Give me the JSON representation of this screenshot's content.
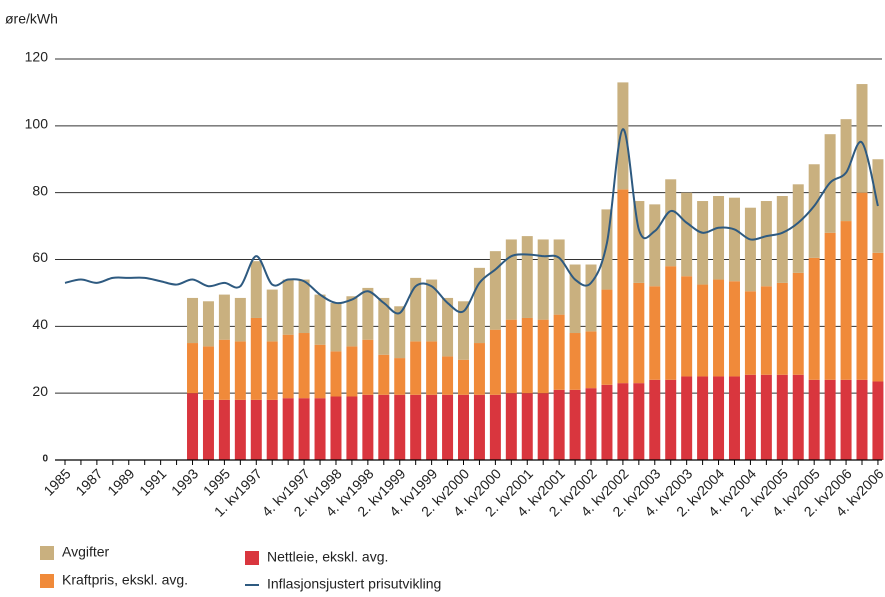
{
  "chart_data": {
    "type": "bar",
    "y_label": "øre/kWh",
    "categories": [
      "1985",
      null,
      "1987",
      null,
      "1989",
      null,
      "1991",
      null,
      "1993",
      null,
      "1995",
      null,
      "1. kv1997",
      null,
      null,
      "4. kv1997",
      null,
      "2. kv1998",
      null,
      "4. kv1998",
      null,
      "2. kv1999",
      null,
      "4. kv1999",
      null,
      "2. kv2000",
      null,
      "4. kv2000",
      null,
      "2. kv2001",
      null,
      "4. kv2001",
      null,
      "2. kv2002",
      null,
      "4. kv2002",
      null,
      "2. kv2003",
      null,
      "4. kv2003",
      null,
      "2. kv2004",
      null,
      "4. kv2004",
      null,
      "2. kv2005",
      null,
      "4. kv2005",
      null,
      "2. kv2006",
      null,
      "4. kv2006"
    ],
    "series": [
      {
        "name": "Nettleie, ekskl. avg.",
        "type": "bar",
        "color": "#d9363e",
        "values": [
          null,
          null,
          null,
          null,
          null,
          null,
          null,
          null,
          20,
          18,
          18,
          18,
          18,
          18,
          18.5,
          18.5,
          18.5,
          19,
          19,
          19.5,
          19.5,
          19.5,
          19.5,
          19.5,
          19.5,
          19.5,
          19.5,
          19.5,
          20,
          20,
          20,
          21,
          21,
          21.5,
          22.5,
          23,
          23,
          24,
          24,
          25,
          25,
          25,
          25,
          25.5,
          25.5,
          25.5,
          25.5,
          24,
          24,
          24,
          24,
          23.5
        ]
      },
      {
        "name": "Kraftpris, ekskl. avg.",
        "type": "bar",
        "color": "#f08a3a",
        "values": [
          null,
          null,
          null,
          null,
          null,
          null,
          null,
          null,
          15,
          16,
          18,
          17.5,
          24.5,
          17.5,
          19,
          19.5,
          16,
          13.5,
          15,
          16.5,
          12,
          11,
          16,
          16,
          11.5,
          10.5,
          15.5,
          19.5,
          22,
          22.5,
          22,
          22.5,
          17,
          17,
          28.5,
          58,
          30,
          28,
          34,
          30,
          27.5,
          29,
          28.5,
          25,
          26.5,
          27.5,
          30.5,
          36.5,
          44,
          47.5,
          56,
          38.5
        ]
      },
      {
        "name": "Avgifter",
        "type": "bar",
        "color": "#c9b07f",
        "values": [
          null,
          null,
          null,
          null,
          null,
          null,
          null,
          null,
          13.5,
          13.5,
          13.5,
          13,
          17,
          15.5,
          16.5,
          16,
          15,
          14.5,
          15,
          15.5,
          17,
          15.5,
          19,
          18.5,
          17.5,
          17.5,
          22.5,
          23.5,
          24,
          24.5,
          24,
          22.5,
          20.5,
          20,
          24,
          32,
          24.5,
          24.5,
          26,
          25,
          25,
          25,
          25,
          25,
          25.5,
          26,
          26.5,
          28,
          29.5,
          30.5,
          32.5,
          28
        ]
      },
      {
        "name": "Inflasjonsjustert prisutvikling",
        "type": "line",
        "color": "#2e5a80",
        "values": [
          53,
          54,
          53,
          54.5,
          54.5,
          54.5,
          53.5,
          52.5,
          54,
          52,
          53,
          52,
          61,
          52.5,
          54,
          53.5,
          49.5,
          47,
          48,
          50.5,
          47,
          44,
          52,
          52,
          47,
          44.5,
          53,
          57,
          61,
          61.5,
          61,
          60.5,
          54,
          53,
          65,
          99,
          69,
          68.5,
          74.5,
          71,
          68,
          69.5,
          69,
          66,
          67,
          68,
          71,
          76,
          83,
          86,
          95,
          76
        ]
      }
    ],
    "ylim": [
      0,
      120
    ],
    "yticks": [
      0,
      20,
      40,
      60,
      80,
      100,
      120
    ],
    "grid": true
  }
}
